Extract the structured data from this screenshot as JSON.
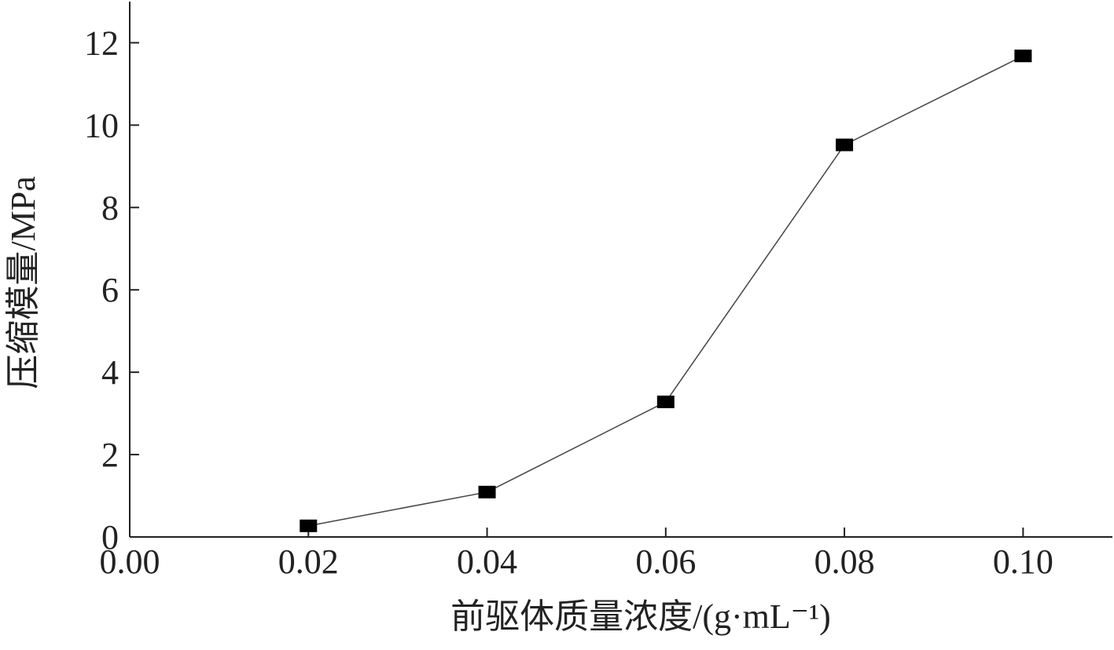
{
  "chart_data": {
    "type": "line",
    "x_label": "前驱体质量浓度/(g·mL⁻¹)",
    "y_label": "压缩模量/MPa",
    "x": [
      0.02,
      0.04,
      0.06,
      0.08,
      0.1
    ],
    "series": [
      {
        "name": "压缩模量",
        "color": "#000000",
        "values": [
          0.27,
          1.09,
          3.28,
          9.52,
          11.68
        ]
      }
    ],
    "xlim": [
      0,
      0.11
    ],
    "ylim": [
      0,
      13
    ],
    "xticks": [
      {
        "value": 0,
        "label": "0.00"
      },
      {
        "value": 0.02,
        "label": "0.02"
      },
      {
        "value": 0.04,
        "label": "0.04"
      },
      {
        "value": 0.06,
        "label": "0.06"
      },
      {
        "value": 0.08,
        "label": "0.08"
      },
      {
        "value": 0.1,
        "label": "0.10"
      }
    ],
    "yticks": [
      0,
      2,
      4,
      6,
      8,
      10,
      12
    ],
    "grid": false
  }
}
